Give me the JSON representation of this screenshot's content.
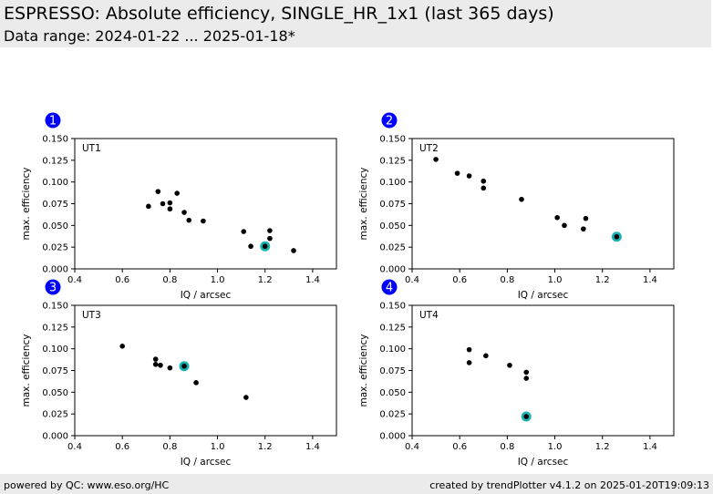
{
  "header": {
    "title": "ESPRESSO: Absolute efficiency, SINGLE_HR_1x1 (last 365 days)",
    "subtitle": "Data range: 2024-01-22 ... 2025-01-18*"
  },
  "footer": {
    "left": "powered by QC: www.eso.org/HC",
    "right": "created by trendPlotter v4.1.2 on 2025-01-20T19:09:13"
  },
  "colors": {
    "points": "#000000",
    "highlight": "#1ab3b3",
    "badge": "#0000ff"
  },
  "chart_data": [
    {
      "type": "scatter",
      "badge": "1",
      "label": "UT1",
      "xlabel": "IQ / arcsec",
      "ylabel": "max. efficiency",
      "xlim": [
        0.4,
        1.5
      ],
      "ylim": [
        0.0,
        0.15
      ],
      "xticks": [
        "0.4",
        "0.6",
        "0.8",
        "1.0",
        "1.2",
        "1.4"
      ],
      "yticks": [
        "0.000",
        "0.025",
        "0.050",
        "0.075",
        "0.100",
        "0.125",
        "0.150"
      ],
      "points": [
        [
          0.71,
          0.072
        ],
        [
          0.75,
          0.089
        ],
        [
          0.77,
          0.075
        ],
        [
          0.8,
          0.076
        ],
        [
          0.8,
          0.069
        ],
        [
          0.83,
          0.087
        ],
        [
          0.86,
          0.065
        ],
        [
          0.88,
          0.056
        ],
        [
          0.94,
          0.055
        ],
        [
          1.11,
          0.043
        ],
        [
          1.14,
          0.026
        ],
        [
          1.22,
          0.044
        ],
        [
          1.22,
          0.035
        ],
        [
          1.32,
          0.021
        ]
      ],
      "highlight": [
        [
          1.2,
          0.026
        ]
      ]
    },
    {
      "type": "scatter",
      "badge": "2",
      "label": "UT2",
      "xlabel": "IQ / arcsec",
      "ylabel": "max. efficiency",
      "xlim": [
        0.4,
        1.5
      ],
      "ylim": [
        0.0,
        0.15
      ],
      "xticks": [
        "0.4",
        "0.6",
        "0.8",
        "1.0",
        "1.2",
        "1.4"
      ],
      "yticks": [
        "0.000",
        "0.025",
        "0.050",
        "0.075",
        "0.100",
        "0.125",
        "0.150"
      ],
      "points": [
        [
          0.5,
          0.126
        ],
        [
          0.59,
          0.11
        ],
        [
          0.64,
          0.107
        ],
        [
          0.7,
          0.101
        ],
        [
          0.7,
          0.093
        ],
        [
          0.86,
          0.08
        ],
        [
          1.01,
          0.059
        ],
        [
          1.04,
          0.05
        ],
        [
          1.12,
          0.046
        ],
        [
          1.13,
          0.058
        ]
      ],
      "highlight": [
        [
          1.26,
          0.037
        ]
      ]
    },
    {
      "type": "scatter",
      "badge": "3",
      "label": "UT3",
      "xlabel": "IQ / arcsec",
      "ylabel": "max. efficiency",
      "xlim": [
        0.4,
        1.5
      ],
      "ylim": [
        0.0,
        0.15
      ],
      "xticks": [
        "0.4",
        "0.6",
        "0.8",
        "1.0",
        "1.2",
        "1.4"
      ],
      "yticks": [
        "0.000",
        "0.025",
        "0.050",
        "0.075",
        "0.100",
        "0.125",
        "0.150"
      ],
      "points": [
        [
          0.6,
          0.103
        ],
        [
          0.74,
          0.088
        ],
        [
          0.74,
          0.082
        ],
        [
          0.76,
          0.081
        ],
        [
          0.8,
          0.078
        ],
        [
          0.91,
          0.061
        ],
        [
          1.12,
          0.044
        ]
      ],
      "highlight": [
        [
          0.86,
          0.08
        ]
      ]
    },
    {
      "type": "scatter",
      "badge": "4",
      "label": "UT4",
      "xlabel": "IQ / arcsec",
      "ylabel": "max. efficiency",
      "xlim": [
        0.4,
        1.5
      ],
      "ylim": [
        0.0,
        0.15
      ],
      "xticks": [
        "0.4",
        "0.6",
        "0.8",
        "1.0",
        "1.2",
        "1.4"
      ],
      "yticks": [
        "0.000",
        "0.025",
        "0.050",
        "0.075",
        "0.100",
        "0.125",
        "0.150"
      ],
      "points": [
        [
          0.64,
          0.099
        ],
        [
          0.64,
          0.084
        ],
        [
          0.71,
          0.092
        ],
        [
          0.81,
          0.081
        ],
        [
          0.88,
          0.073
        ],
        [
          0.88,
          0.066
        ]
      ],
      "highlight": [
        [
          0.88,
          0.022
        ]
      ]
    }
  ]
}
